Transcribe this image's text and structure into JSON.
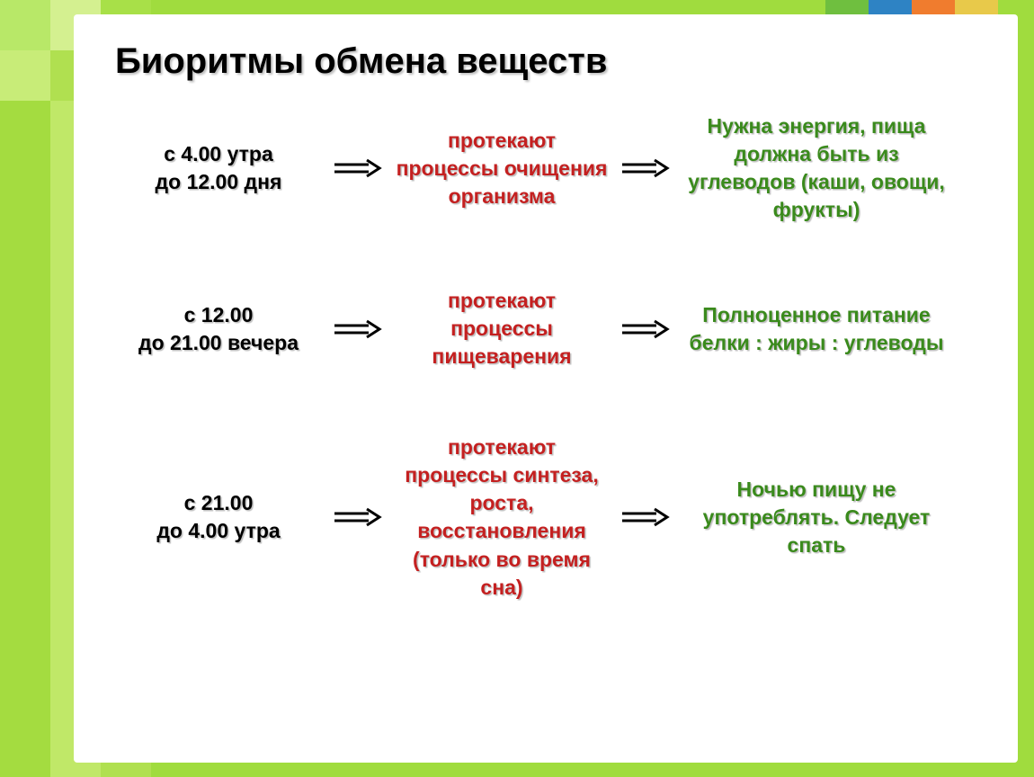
{
  "slide": {
    "title": "Биоритмы обмена веществ",
    "background_color": "#a0dc3e",
    "panel_color": "#ffffff",
    "title_color": "#000000",
    "title_fontsize": 40,
    "body_fontsize": 23,
    "time_color": "#000000",
    "process_color": "#c42020",
    "result_color": "#3a8a1c",
    "arrow_stroke": "#000000",
    "arrow_stroke_width": 3,
    "accent_colors": [
      "#6fbf3f",
      "#2e83c4",
      "#f07c2e",
      "#e8c94a"
    ]
  },
  "rows": [
    {
      "time": "с 4.00 утра\nдо 12.00 дня",
      "process": "протекают процессы очищения организма",
      "result": "Нужна энергия, пища должна быть из углеводов (каши, овощи, фрукты)"
    },
    {
      "time": "с 12.00\nдо 21.00 вечера",
      "process": "протекают процессы пищеварения",
      "result": "Полноценное питание\nбелки : жиры : углеводы"
    },
    {
      "time": "с 21.00\nдо 4.00 утра",
      "process": "протекают процессы синтеза, роста, восстановления (только во время сна)",
      "result": "Ночью пищу не употреблять. Следует спать"
    }
  ]
}
